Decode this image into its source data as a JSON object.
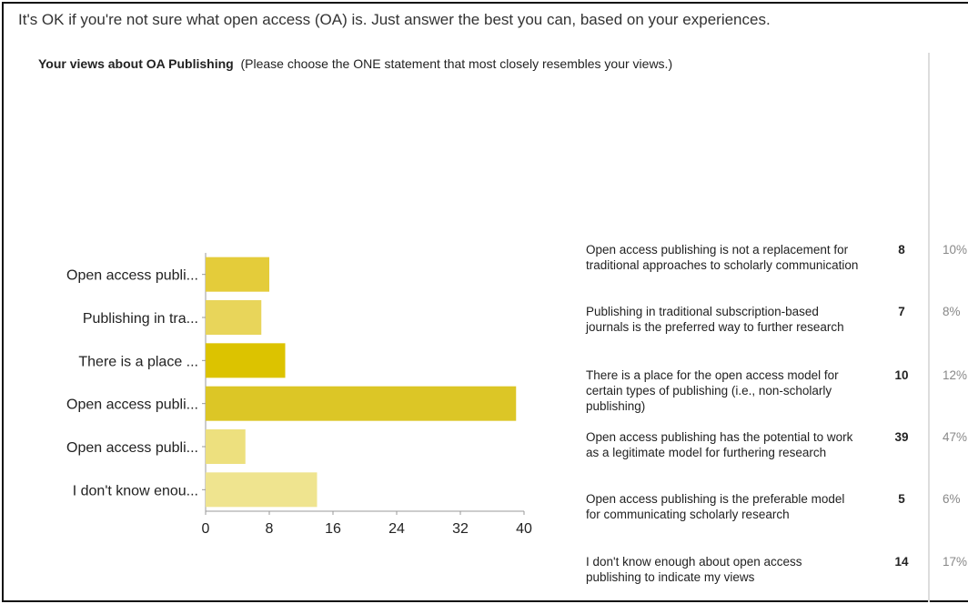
{
  "intro": "It's OK if you're not sure what open access (OA) is. Just answer the best you can, based on your experiences.",
  "question": {
    "title": "Your views about OA Publishing",
    "instruction": "(Please choose the ONE statement that most closely resembles your views.)"
  },
  "chart_data": {
    "type": "bar",
    "orientation": "horizontal",
    "categories": [
      "Open access publi...",
      "Publishing in tra...",
      "There is a place ...",
      "Open access publi...",
      "Open access publi...",
      "I don't know enou..."
    ],
    "values": [
      8,
      7,
      10,
      39,
      5,
      14
    ],
    "xlim": [
      0,
      40
    ],
    "xticks": [
      "0",
      "8",
      "16",
      "24",
      "32",
      "40"
    ],
    "grid": false,
    "legend": "none",
    "bar_colors": [
      "#e4cc3a",
      "#e8d55a",
      "#dcc300",
      "#dcc626",
      "#ede07e",
      "#efe48f"
    ]
  },
  "results": [
    {
      "text": "Open access publishing is not a replacement for traditional approaches to scholarly communication",
      "count": "8",
      "percent": "10%"
    },
    {
      "text": "Publishing in traditional subscription-based journals is the preferred way to further research",
      "count": "7",
      "percent": "8%"
    },
    {
      "text": "There is a place for the open access model for certain types of publishing (i.e., non-scholarly publishing)",
      "count": "10",
      "percent": "12%"
    },
    {
      "text": "Open access publishing has the potential to work as a legitimate model for furthering research",
      "count": "39",
      "percent": "47%"
    },
    {
      "text": "Open access publishing is the preferable model for communicating scholarly research",
      "count": "5",
      "percent": "6%"
    },
    {
      "text": "I don't know enough about open access publishing to indicate my views",
      "count": "14",
      "percent": "17%"
    }
  ]
}
